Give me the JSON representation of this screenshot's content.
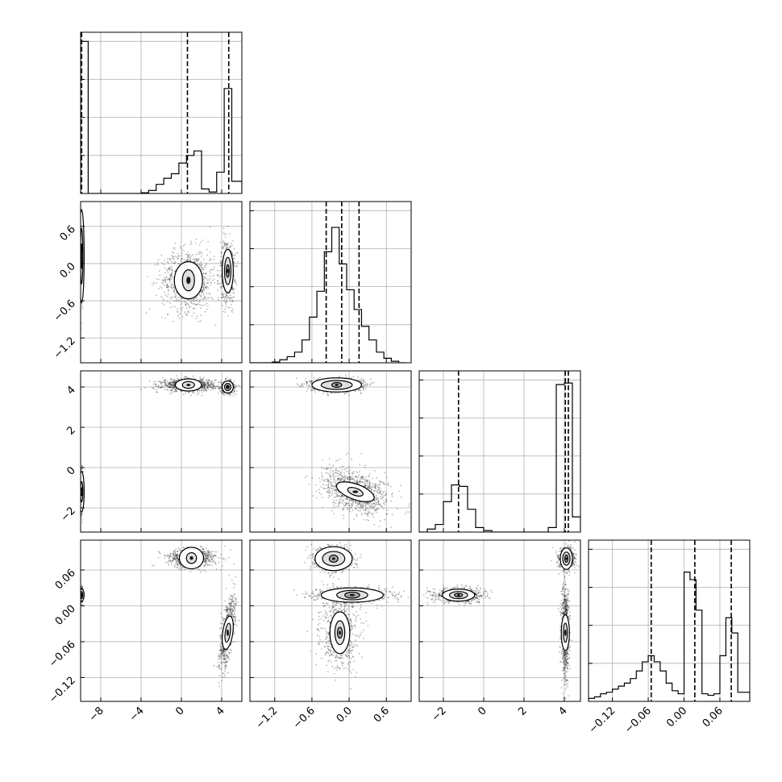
{
  "chart_data": {
    "type": "scatter",
    "plot_kind": "corner-plot",
    "grid": true,
    "parameters": [
      {
        "range": [
          -10,
          6
        ],
        "ticks": [
          -8,
          -4,
          0,
          4
        ],
        "tick_labels": [
          "−8",
          "−4",
          "0",
          "4"
        ],
        "quantiles": [
          -9.9,
          0.6,
          4.7
        ],
        "histogram": {
          "bin_edges": [
            -10,
            -9.25,
            -8.5,
            -7.75,
            -7,
            -6.25,
            -5.5,
            -4.75,
            -4,
            -3.25,
            -2.5,
            -1.75,
            -1,
            -0.25,
            0.5,
            1.25,
            2,
            2.75,
            3.5,
            4.25,
            5,
            5.75,
            6
          ],
          "counts": [
            1.0,
            0,
            0,
            0,
            0,
            0,
            0,
            0,
            0.005,
            0.02,
            0.06,
            0.1,
            0.13,
            0.2,
            0.25,
            0.28,
            0.03,
            0.01,
            0.14,
            0.69,
            0.08,
            0.08
          ]
        }
      },
      {
        "range": [
          -1.6,
          1.0
        ],
        "ticks": [
          -1.2,
          -0.6,
          0.0,
          0.6
        ],
        "tick_labels": [
          "−1.2",
          "−0.6",
          "0.0",
          "0.6"
        ],
        "quantiles": [
          -0.37,
          -0.12,
          0.16
        ],
        "histogram": {
          "bin_edges": [
            -1.6,
            -1.48,
            -1.36,
            -1.24,
            -1.12,
            -1.0,
            -0.88,
            -0.76,
            -0.64,
            -0.52,
            -0.4,
            -0.28,
            -0.16,
            -0.04,
            0.08,
            0.2,
            0.32,
            0.44,
            0.56,
            0.68,
            0.8,
            0.92
          ],
          "counts": [
            0,
            0,
            0,
            0.005,
            0.02,
            0.04,
            0.07,
            0.15,
            0.3,
            0.47,
            0.73,
            0.89,
            0.65,
            0.48,
            0.35,
            0.24,
            0.15,
            0.07,
            0.03,
            0.01,
            0
          ]
        }
      },
      {
        "range": [
          -3.2,
          4.8
        ],
        "ticks": [
          -2,
          0,
          2,
          4
        ],
        "tick_labels": [
          "−2",
          "0",
          "2",
          "4"
        ],
        "quantiles": [
          -1.25,
          4.05,
          4.2
        ],
        "histogram": {
          "bin_edges": [
            -3.2,
            -2.8,
            -2.4,
            -2.0,
            -1.6,
            -1.2,
            -0.8,
            -0.4,
            0.0,
            0.4,
            0.8,
            1.2,
            1.6,
            2.0,
            2.4,
            2.8,
            3.2,
            3.6,
            4.0,
            4.4,
            4.8
          ],
          "counts": [
            0,
            0.02,
            0.05,
            0.2,
            0.31,
            0.3,
            0.15,
            0.03,
            0.01,
            0,
            0,
            0,
            0,
            0,
            0,
            0,
            0.03,
            0.97,
            0.98,
            0.1
          ]
        }
      },
      {
        "range": [
          -0.16,
          0.11
        ],
        "ticks": [
          -0.12,
          -0.06,
          0.0,
          0.06
        ],
        "tick_labels": [
          "−0.12",
          "−0.06",
          "0.00",
          "0.06"
        ],
        "quantiles": [
          -0.055,
          0.018,
          0.079
        ],
        "histogram": {
          "bin_edges": [
            -0.16,
            -0.15,
            -0.14,
            -0.13,
            -0.12,
            -0.11,
            -0.1,
            -0.09,
            -0.08,
            -0.07,
            -0.06,
            -0.05,
            -0.04,
            -0.03,
            -0.02,
            -0.01,
            0.0,
            0.01,
            0.02,
            0.03,
            0.04,
            0.05,
            0.06,
            0.07,
            0.08,
            0.09,
            0.1,
            0.11
          ],
          "counts": [
            0.02,
            0.03,
            0.05,
            0.06,
            0.08,
            0.1,
            0.12,
            0.15,
            0.2,
            0.26,
            0.3,
            0.26,
            0.2,
            0.12,
            0.07,
            0.05,
            0.85,
            0.8,
            0.6,
            0.05,
            0.04,
            0.05,
            0.3,
            0.55,
            0.45,
            0.06,
            0.06
          ]
        }
      }
    ],
    "joint": {
      "1_0": [
        {
          "center": [
            -9.9,
            0.12
          ],
          "spread": [
            0.05,
            0.28
          ],
          "rot": 0,
          "weight": 0.35,
          "contours": [
            [
              0.25,
              0.75
            ],
            [
              0.12,
              0.45
            ],
            [
              0.06,
              0.2
            ]
          ]
        },
        {
          "center": [
            0.7,
            -0.27
          ],
          "spread": [
            1.3,
            0.25
          ],
          "rot": 0,
          "weight": 0.4,
          "contours": [
            [
              1.4,
              0.3
            ],
            [
              0.6,
              0.17
            ]
          ]
        },
        {
          "center": [
            4.6,
            -0.12
          ],
          "spread": [
            0.35,
            0.25
          ],
          "rot": 0,
          "weight": 0.25,
          "contours": [
            [
              0.55,
              0.35
            ],
            [
              0.32,
              0.22
            ],
            [
              0.15,
              0.1
            ]
          ]
        }
      ],
      "2_0": [
        {
          "center": [
            -9.9,
            -1.2
          ],
          "spread": [
            0.05,
            0.45
          ],
          "rot": 0,
          "weight": 0.35,
          "contours": [
            [
              0.25,
              1.0
            ],
            [
              0.12,
              0.5
            ],
            [
              0.06,
              0.2
            ]
          ]
        },
        {
          "center": [
            0.7,
            4.1
          ],
          "spread": [
            1.3,
            0.15
          ],
          "rot": 0,
          "weight": 0.4,
          "contours": [
            [
              1.3,
              0.3
            ],
            [
              0.6,
              0.17
            ]
          ]
        },
        {
          "center": [
            4.6,
            4.0
          ],
          "spread": [
            0.35,
            0.15
          ],
          "rot": 0,
          "weight": 0.25,
          "contours": [
            [
              0.55,
              0.3
            ],
            [
              0.32,
              0.18
            ],
            [
              0.15,
              0.09
            ]
          ]
        }
      ],
      "2_1": [
        {
          "center": [
            -0.2,
            4.1
          ],
          "spread": [
            0.2,
            0.15
          ],
          "rot": 0,
          "weight": 0.55,
          "contours": [
            [
              0.4,
              0.35
            ],
            [
              0.25,
              0.22
            ],
            [
              0.08,
              0.12
            ]
          ]
        },
        {
          "center": [
            0.1,
            -1.2
          ],
          "spread": [
            0.28,
            0.5
          ],
          "rot": -20,
          "weight": 0.45,
          "contours": [
            [
              0.32,
              0.38
            ],
            [
              0.13,
              0.18
            ]
          ]
        }
      ],
      "3_0": [
        {
          "center": [
            -9.9,
            0.018
          ],
          "spread": [
            0.05,
            0.005
          ],
          "rot": 0,
          "weight": 0.35,
          "contours": [
            [
              0.25,
              0.01
            ],
            [
              0.12,
              0.006
            ],
            [
              0.06,
              0.003
            ]
          ]
        },
        {
          "center": [
            1.0,
            0.08
          ],
          "spread": [
            1.2,
            0.008
          ],
          "rot": 0,
          "weight": 0.35,
          "contours": [
            [
              1.2,
              0.018
            ],
            [
              0.5,
              0.009
            ]
          ]
        },
        {
          "center": [
            4.6,
            -0.045
          ],
          "spread": [
            0.3,
            0.03
          ],
          "rot": -8,
          "weight": 0.3,
          "contours": [
            [
              0.5,
              0.028
            ],
            [
              0.25,
              0.016
            ]
          ]
        }
      ],
      "3_1": [
        {
          "center": [
            -0.25,
            0.079
          ],
          "spread": [
            0.15,
            0.01
          ],
          "rot": 0,
          "weight": 0.35,
          "contours": [
            [
              0.3,
              0.02
            ],
            [
              0.18,
              0.012
            ],
            [
              0.07,
              0.006
            ]
          ]
        },
        {
          "center": [
            0.05,
            0.018
          ],
          "spread": [
            0.3,
            0.006
          ],
          "rot": 0,
          "weight": 0.35,
          "contours": [
            [
              0.5,
              0.012
            ],
            [
              0.25,
              0.008
            ],
            [
              0.12,
              0.005
            ]
          ]
        },
        {
          "center": [
            -0.15,
            -0.045
          ],
          "spread": [
            0.15,
            0.03
          ],
          "rot": 0,
          "weight": 0.3,
          "contours": [
            [
              0.16,
              0.035
            ],
            [
              0.08,
              0.02
            ],
            [
              0.04,
              0.009
            ]
          ]
        }
      ],
      "3_2": [
        {
          "center": [
            -1.25,
            0.018
          ],
          "spread": [
            0.6,
            0.006
          ],
          "rot": 0,
          "weight": 0.35,
          "contours": [
            [
              0.8,
              0.01
            ],
            [
              0.45,
              0.006
            ],
            [
              0.2,
              0.003
            ]
          ]
        },
        {
          "center": [
            4.1,
            0.079
          ],
          "spread": [
            0.2,
            0.009
          ],
          "rot": 0,
          "weight": 0.3,
          "contours": [
            [
              0.3,
              0.018
            ],
            [
              0.18,
              0.011
            ],
            [
              0.08,
              0.006
            ]
          ]
        },
        {
          "center": [
            4.05,
            -0.045
          ],
          "spread": [
            0.1,
            0.04
          ],
          "rot": 0,
          "weight": 0.35,
          "contours": [
            [
              0.2,
              0.03
            ],
            [
              0.1,
              0.016
            ]
          ]
        }
      ]
    }
  }
}
